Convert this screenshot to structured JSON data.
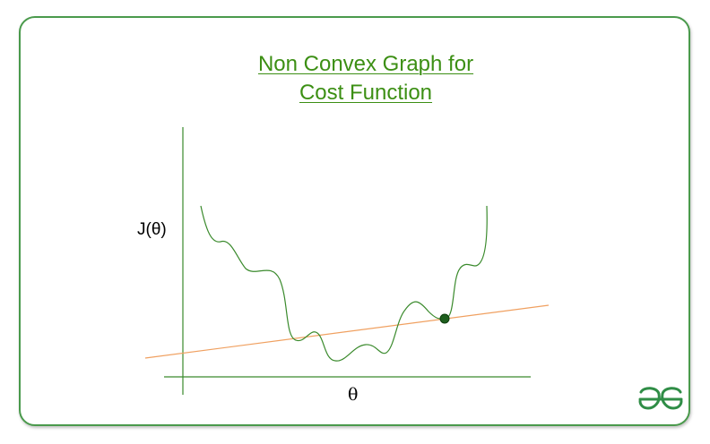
{
  "title": {
    "line1": "Non Convex Graph for",
    "line2": "Cost Function"
  },
  "axes": {
    "y_label": "J(θ)",
    "x_label": "θ"
  },
  "logo": {
    "name": "geeksforgeeks-logo",
    "text": "ƏG"
  },
  "colors": {
    "border": "#4a9a4c",
    "title": "#3c8f14",
    "curve": "#3a8a2c",
    "tangent": "#f0a060",
    "point": "#1e5f1e",
    "axis": "#3a8a2c"
  }
}
